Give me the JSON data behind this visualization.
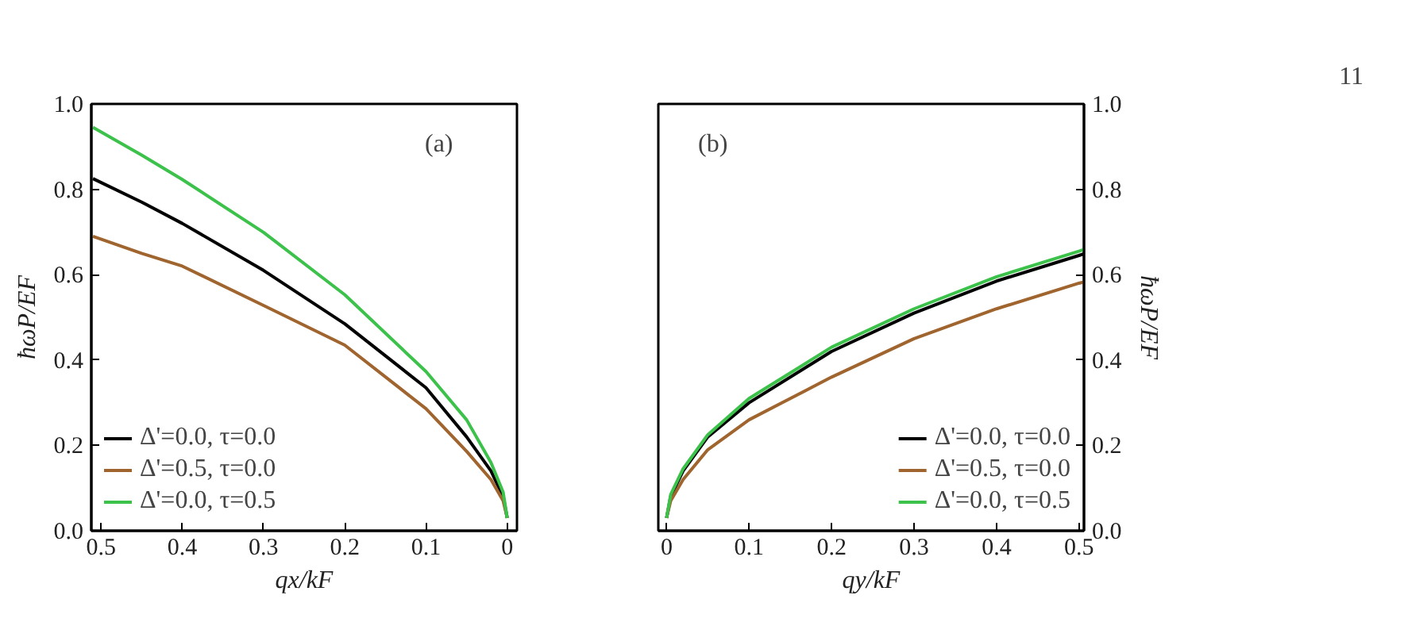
{
  "chart_data": [
    {
      "type": "line",
      "xlabel": "qx/kF",
      "ylabel": "ħωP/EF",
      "xlim": [
        0.512,
        -0.012
      ],
      "xticks": [
        {
          "value": 0.5,
          "label": "0.5"
        },
        {
          "value": 0.4,
          "label": "0.4"
        },
        {
          "value": 0.3,
          "label": "0.3"
        },
        {
          "value": 0.2,
          "label": "0.2"
        },
        {
          "value": 0.1,
          "label": "0.1"
        },
        0
      ],
      "ylim": [
        0,
        1
      ],
      "yticks": [
        {
          "value": 0,
          "label": "0.0"
        },
        {
          "value": 0.2,
          "label": "0.2"
        },
        {
          "value": 0.4,
          "label": "0.4"
        },
        {
          "value": 0.6,
          "label": "0.6"
        },
        {
          "value": 0.8,
          "label": "0.8"
        },
        {
          "value": 1,
          "label": "1.0"
        }
      ],
      "grid": false,
      "legend": "bottom left",
      "annotations": [
        "(a)"
      ],
      "x": [
        0.51,
        0.45,
        0.4,
        0.3,
        0.2,
        0.1,
        0.05,
        0.02,
        0.005,
        0
      ],
      "series": [
        {
          "name": "Δ'=0.0, τ=0.0",
          "color": "#000000",
          "values": [
            0.825,
            0.77,
            0.72,
            0.61,
            0.485,
            0.335,
            0.22,
            0.14,
            0.08,
            0.03
          ]
        },
        {
          "name": "Δ'=0.5, τ=0.0",
          "color": "#a0652e",
          "values": [
            0.69,
            0.65,
            0.62,
            0.528,
            0.435,
            0.286,
            0.186,
            0.12,
            0.07,
            0.03
          ]
        },
        {
          "name": "Δ'=0.0, τ=0.5",
          "color": "#3cc24a",
          "values": [
            0.945,
            0.88,
            0.823,
            0.699,
            0.553,
            0.373,
            0.26,
            0.16,
            0.09,
            0.03
          ]
        }
      ]
    },
    {
      "type": "line",
      "xlabel": "qy/kF",
      "y2label": "ħωP/EF",
      "xlim": [
        -0.01,
        0.506
      ],
      "xticks": [
        0,
        {
          "value": 0.1,
          "label": "0.1"
        },
        {
          "value": 0.2,
          "label": "0.2"
        },
        {
          "value": 0.3,
          "label": "0.3"
        },
        {
          "value": 0.4,
          "label": "0.4"
        },
        {
          "value": 0.5,
          "label": "0.5"
        }
      ],
      "y2lim": [
        0,
        1
      ],
      "y2ticks": [
        {
          "value": 0,
          "label": "0.0"
        },
        {
          "value": 0.2,
          "label": "0.2"
        },
        {
          "value": 0.4,
          "label": "0.4"
        },
        {
          "value": 0.6,
          "label": "0.6"
        },
        {
          "value": 0.8,
          "label": "0.8"
        },
        {
          "value": 1,
          "label": "1.0"
        }
      ],
      "grid": false,
      "legend": "bottom right",
      "annotations": [
        "(b)",
        "11"
      ],
      "x": [
        0,
        0.005,
        0.02,
        0.05,
        0.1,
        0.2,
        0.3,
        0.4,
        0.5,
        0.506
      ],
      "series": [
        {
          "name": "Δ'=0.0, τ=0.0",
          "color": "#000000",
          "axis": "y2",
          "values": [
            0.03,
            0.08,
            0.14,
            0.22,
            0.3,
            0.42,
            0.51,
            0.585,
            0.645,
            0.649
          ]
        },
        {
          "name": "Δ'=0.5, τ=0.0",
          "color": "#a0652e",
          "axis": "y2",
          "values": [
            0.03,
            0.07,
            0.12,
            0.19,
            0.26,
            0.36,
            0.45,
            0.52,
            0.58,
            0.583
          ]
        },
        {
          "name": "Δ'=0.0, τ=0.5",
          "color": "#3cc24a",
          "axis": "y2",
          "values": [
            0.03,
            0.085,
            0.145,
            0.225,
            0.31,
            0.43,
            0.52,
            0.595,
            0.655,
            0.659
          ]
        }
      ]
    }
  ]
}
